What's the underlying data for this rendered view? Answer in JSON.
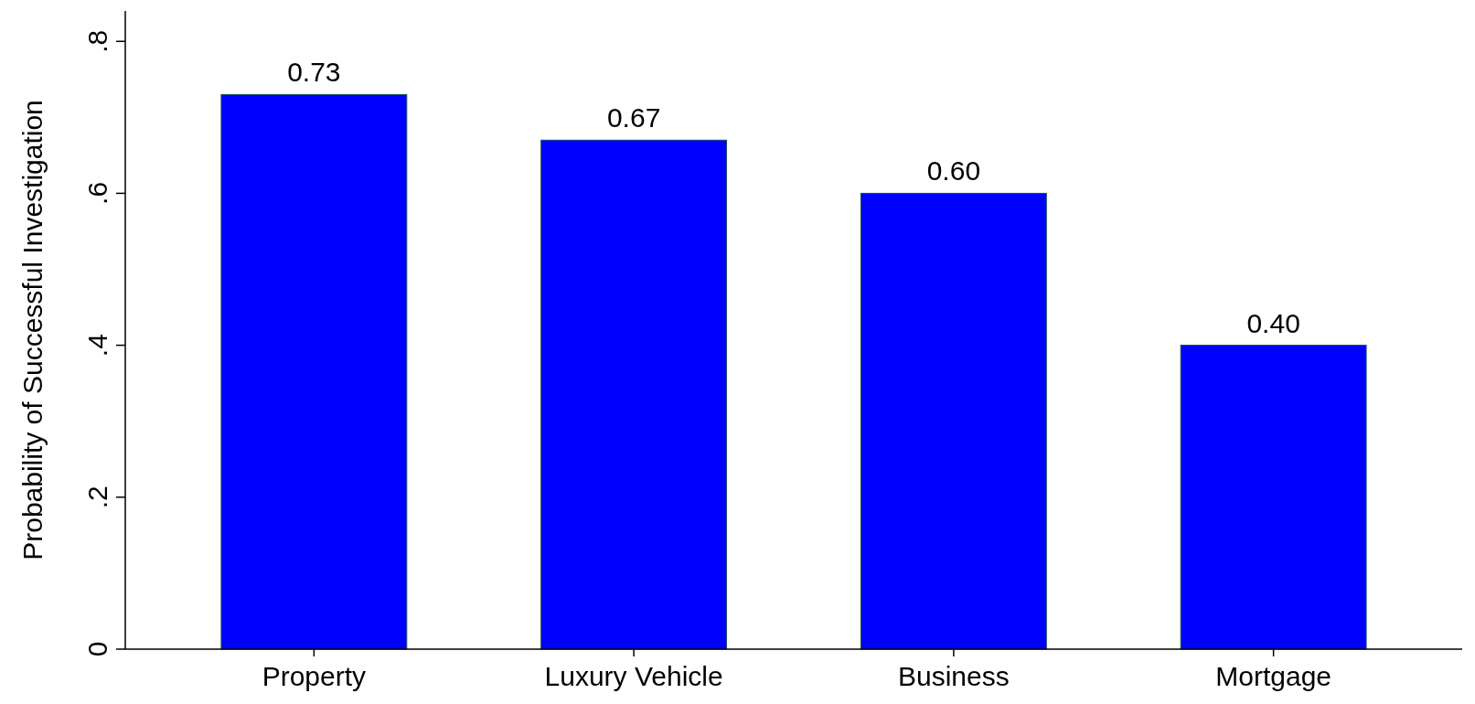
{
  "chart_data": {
    "type": "bar",
    "ylabel": "Probability of Successful Investigation",
    "categories": [
      "Property",
      "Luxury Vehicle",
      "Business",
      "Mortgage"
    ],
    "values": [
      0.73,
      0.67,
      0.6,
      0.4
    ],
    "value_labels": [
      "0.73",
      "0.67",
      "0.60",
      "0.40"
    ],
    "color": "#0000ff",
    "ylim": [
      0,
      0.84
    ],
    "yticks": [
      {
        "value": 0,
        "label": "0"
      },
      {
        "value": 0.2,
        "label": ".2"
      },
      {
        "value": 0.4,
        "label": ".4"
      },
      {
        "value": 0.6,
        "label": ".6"
      },
      {
        "value": 0.8,
        "label": ".8"
      }
    ],
    "grid": false
  }
}
